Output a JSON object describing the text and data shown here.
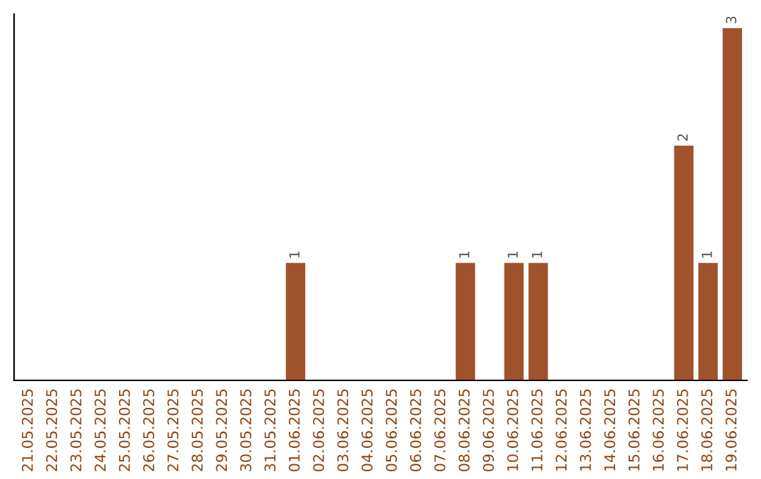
{
  "chart_data": {
    "type": "bar",
    "categories": [
      "21.05.2025",
      "22.05.2025",
      "23.05.2025",
      "24.05.2025",
      "25.05.2025",
      "26.05.2025",
      "27.05.2025",
      "28.05.2025",
      "29.05.2025",
      "30.05.2025",
      "31.05.2025",
      "01.06.2025",
      "02.06.2025",
      "03.06.2025",
      "04.06.2025",
      "05.06.2025",
      "06.06.2025",
      "07.06.2025",
      "08.06.2025",
      "09.06.2025",
      "10.06.2025",
      "11.06.2025",
      "12.06.2025",
      "13.06.2025",
      "14.06.2025",
      "15.06.2025",
      "16.06.2025",
      "17.06.2025",
      "18.06.2025",
      "19.06.2025"
    ],
    "values": [
      0,
      0,
      0,
      0,
      0,
      0,
      0,
      0,
      0,
      0,
      0,
      1,
      0,
      0,
      0,
      0,
      0,
      0,
      1,
      0,
      1,
      1,
      0,
      0,
      0,
      0,
      0,
      2,
      1,
      3
    ],
    "value_labels": [
      null,
      null,
      null,
      null,
      null,
      null,
      null,
      null,
      null,
      null,
      null,
      "1",
      null,
      null,
      null,
      null,
      null,
      null,
      "1",
      null,
      "1",
      "1",
      null,
      null,
      null,
      null,
      null,
      "2",
      "1",
      "3"
    ],
    "color": "#a0522d",
    "grid": false,
    "legend": false,
    "tick_labels": "x"
  }
}
